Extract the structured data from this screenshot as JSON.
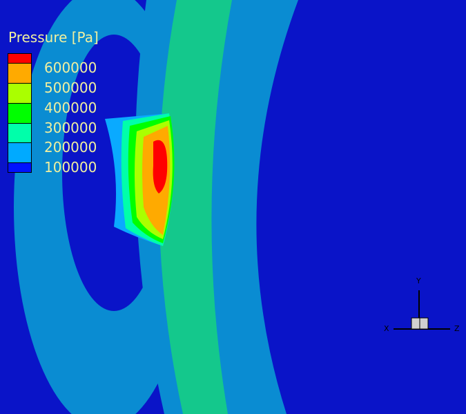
{
  "legend": {
    "title": "Pressure [Pa]",
    "levels": [
      "600000",
      "500000",
      "400000",
      "300000",
      "200000",
      "100000"
    ],
    "colors": [
      "#ff0000",
      "#ffaa00",
      "#aaff00",
      "#00ff00",
      "#00ffaa",
      "#00aaff",
      "#0011ff"
    ]
  },
  "axes": {
    "x": "X",
    "y": "Y",
    "z": "Z"
  },
  "colors": {
    "background": "#0a14c8",
    "band_light": "#0a8cd2",
    "band_green": "#14c88c"
  }
}
